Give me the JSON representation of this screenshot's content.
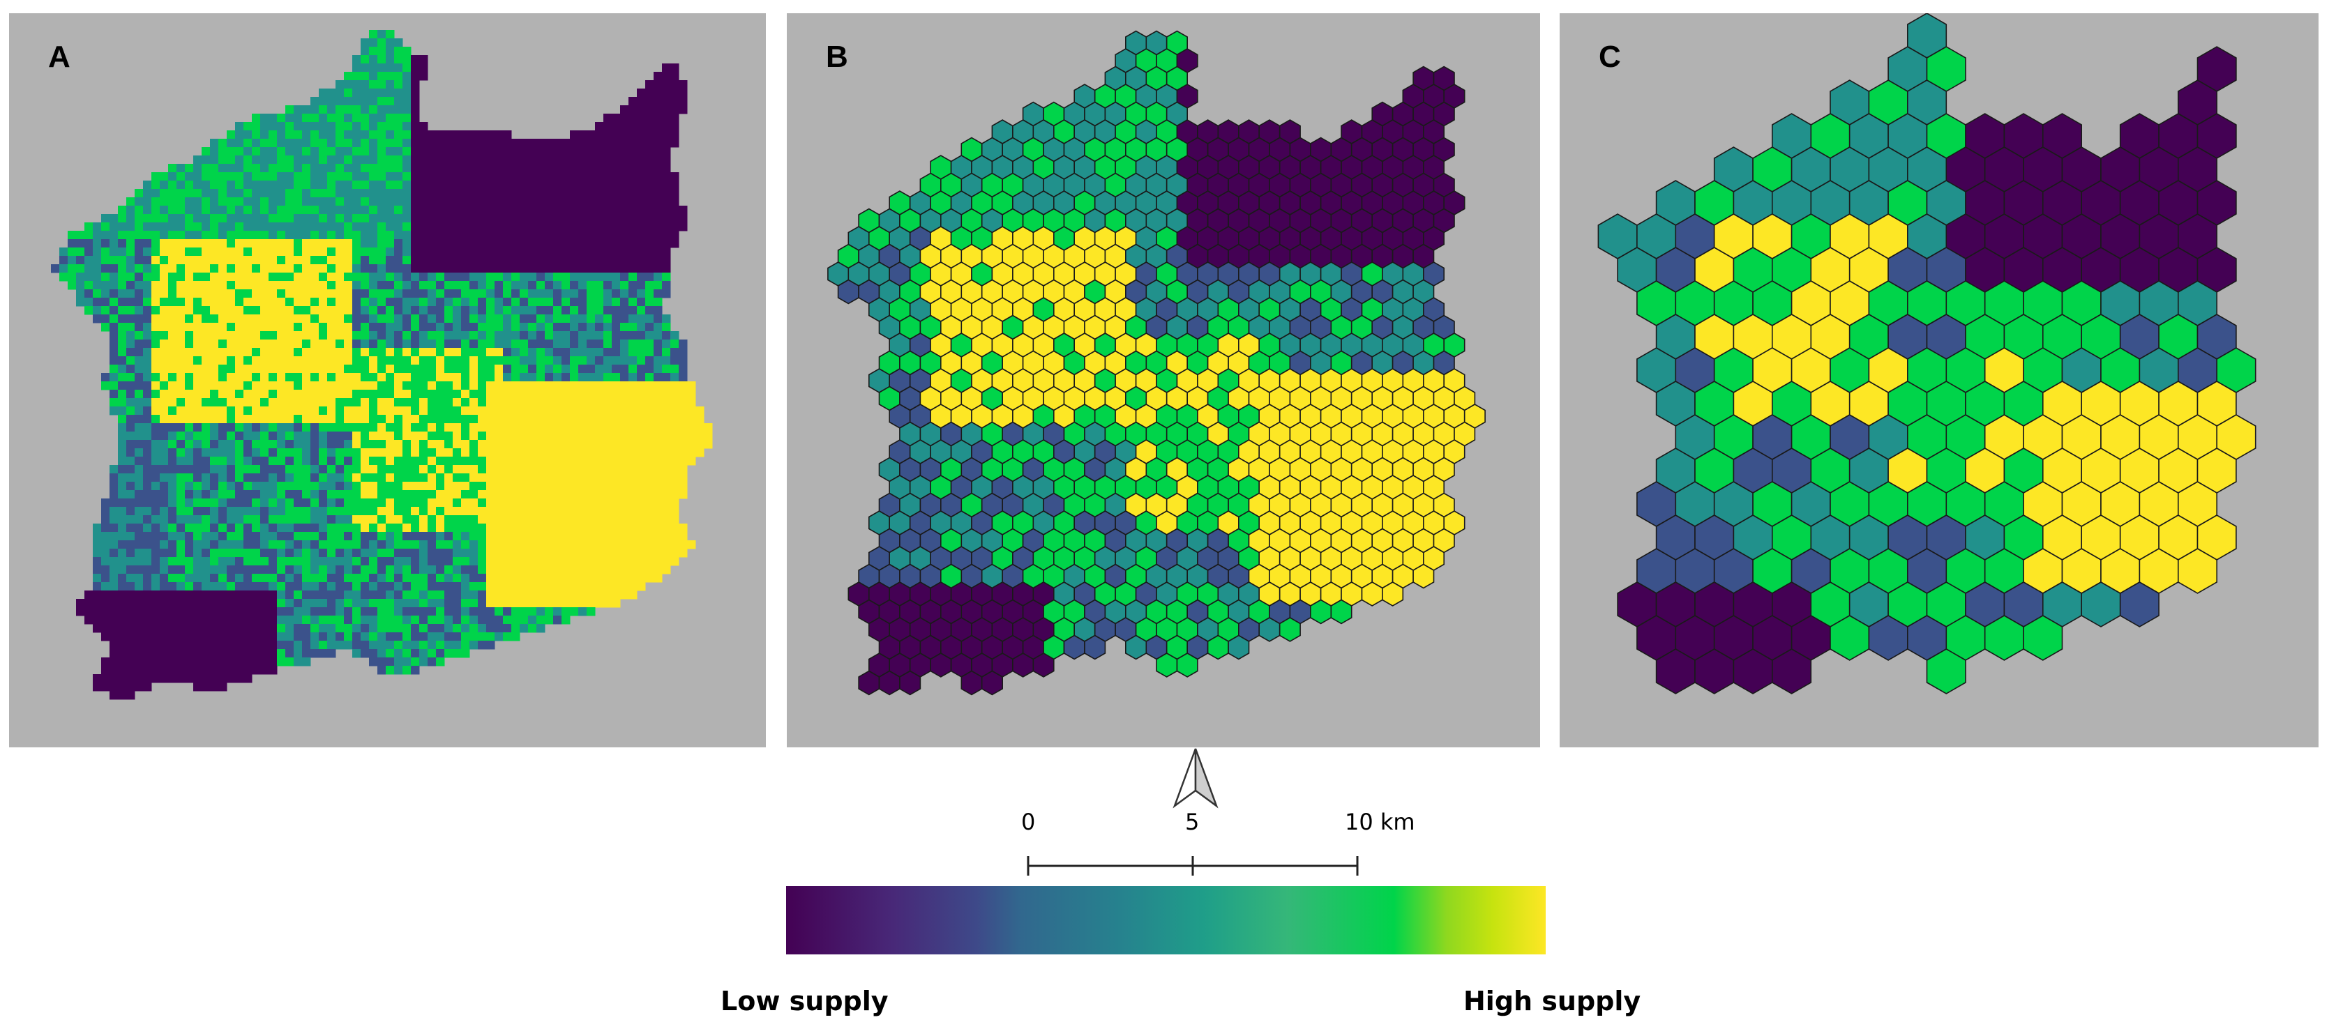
{
  "panels": [
    {
      "label": "A",
      "type": "raster"
    },
    {
      "label": "B",
      "type": "hexagons"
    },
    {
      "label": "C",
      "type": "hexagons"
    }
  ],
  "scale_bar": {
    "ticks": [
      "0",
      "5",
      "10 km"
    ]
  },
  "legend": {
    "low_label": "Low supply",
    "high_label": "High supply",
    "colors": [
      "#440154",
      "#3b528b",
      "#21918c",
      "#1f9e89",
      "#35b779",
      "#00d44a",
      "#fde725"
    ]
  },
  "colors": {
    "background": "#b2b2b2",
    "very_low": "#440154",
    "low": "#3b528b",
    "medium": "#21918c",
    "high": "#00d44a",
    "very_high": "#fde725"
  }
}
